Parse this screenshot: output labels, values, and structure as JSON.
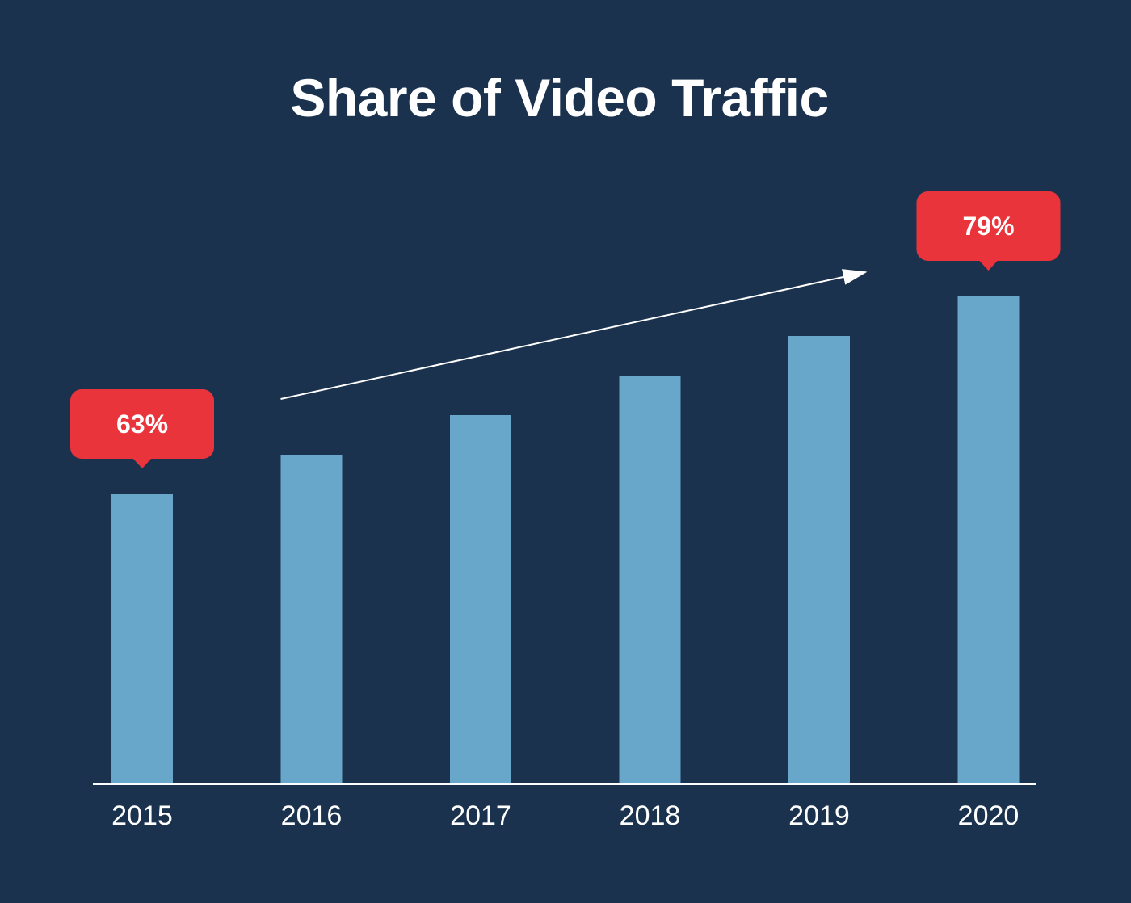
{
  "chart_data": {
    "type": "bar",
    "title": "Share of Video Traffic",
    "categories": [
      "2015",
      "2016",
      "2017",
      "2018",
      "2019",
      "2020"
    ],
    "values": [
      63,
      66.2,
      69.4,
      72.6,
      75.8,
      79
    ],
    "value_unit": "%",
    "xlabel": "",
    "ylabel": "",
    "grid": false,
    "annotations": [
      {
        "category": "2015",
        "text": "63%"
      },
      {
        "category": "2020",
        "text": "79%"
      }
    ],
    "trend_arrow": {
      "from": "2016",
      "to": "2020",
      "direction": "up"
    }
  },
  "colors": {
    "background": "#1a324d",
    "bar": "#68a7ca",
    "callout": "#ea343b",
    "text": "#ffffff",
    "axis": "#ffffff"
  }
}
